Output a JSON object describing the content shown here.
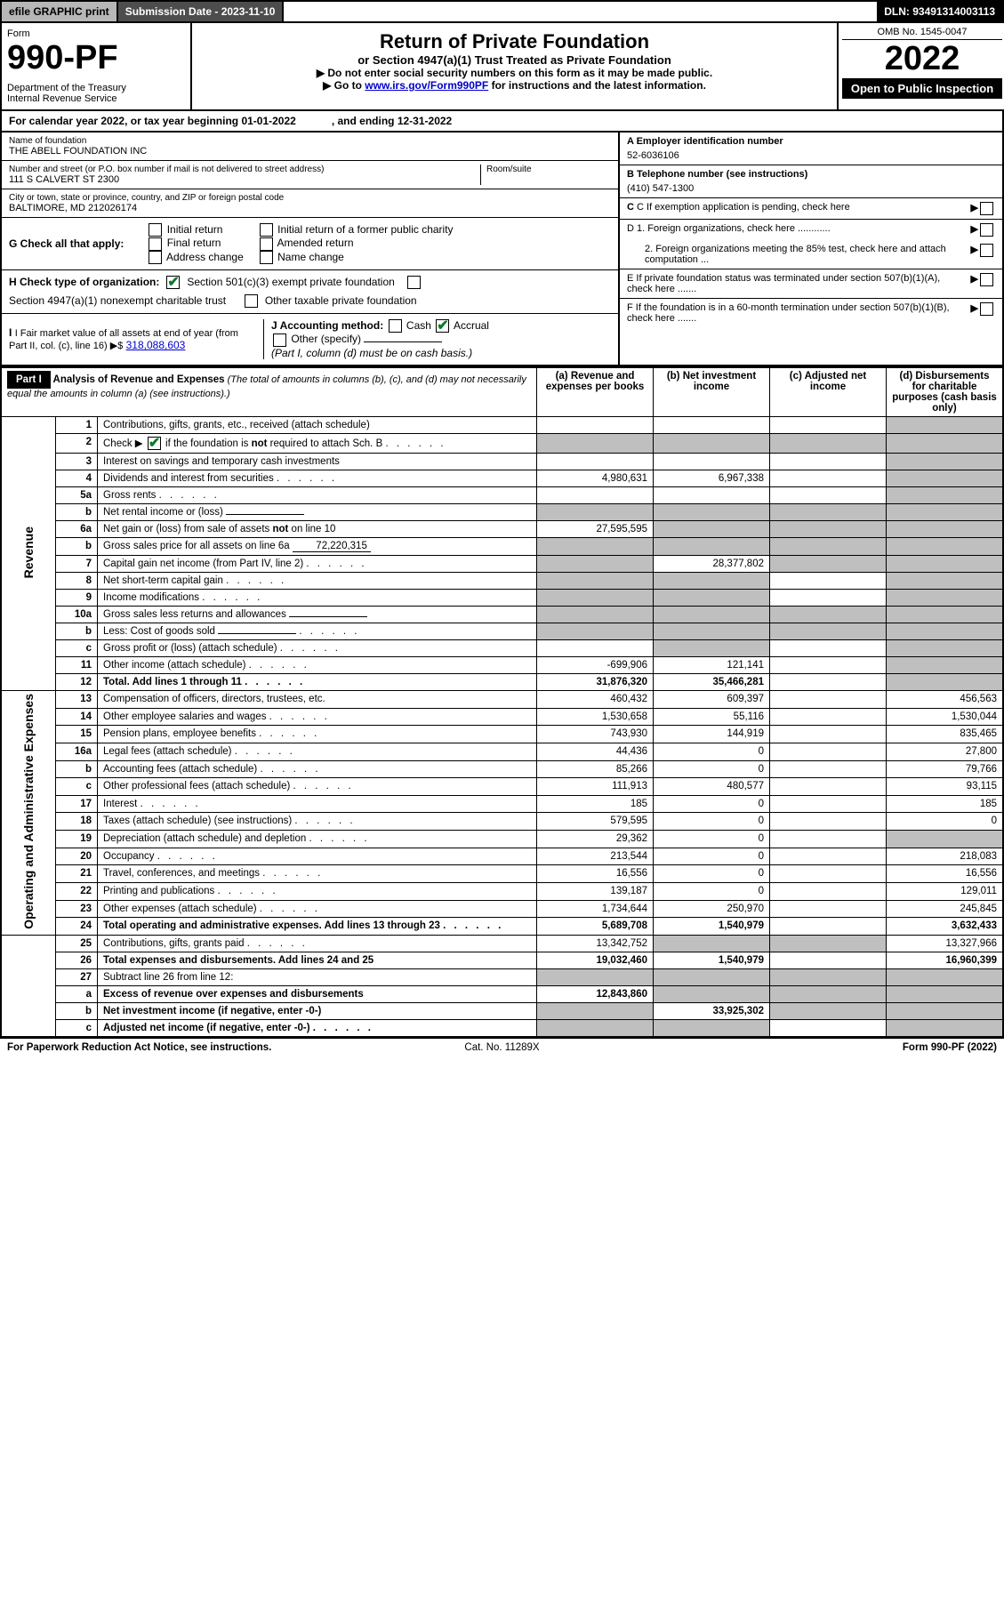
{
  "topbar": {
    "efile": "efile GRAPHIC print",
    "subdate_label": "Submission Date - 2023-11-10",
    "dln": "DLN: 93491314003113"
  },
  "header": {
    "form_label": "Form",
    "form_num": "990-PF",
    "dept": "Department of the Treasury\nInternal Revenue Service",
    "title": "Return of Private Foundation",
    "subtitle": "or Section 4947(a)(1) Trust Treated as Private Foundation",
    "note1": "▶ Do not enter social security numbers on this form as it may be made public.",
    "note2_pre": "▶ Go to ",
    "note2_link": "www.irs.gov/Form990PF",
    "note2_post": " for instructions and the latest information.",
    "omb": "OMB No. 1545-0047",
    "year": "2022",
    "open": "Open to Public Inspection"
  },
  "cal": {
    "line_a": "For calendar year 2022, or tax year beginning 01-01-2022",
    "line_b": ", and ending 12-31-2022"
  },
  "id": {
    "name_label": "Name of foundation",
    "name": "THE ABELL FOUNDATION INC",
    "addr_label": "Number and street (or P.O. box number if mail is not delivered to street address)",
    "addr": "111 S CALVERT ST 2300",
    "room_label": "Room/suite",
    "city_label": "City or town, state or province, country, and ZIP or foreign postal code",
    "city": "BALTIMORE, MD   212026174",
    "a_label": "A Employer identification number",
    "a_val": "52-6036106",
    "b_label": "B Telephone number (see instructions)",
    "b_val": "(410) 547-1300",
    "c_label": "C If exemption application is pending, check here"
  },
  "checks": {
    "g_label": "G Check all that apply:",
    "g_opts": [
      "Initial return",
      "Final return",
      "Address change",
      "Initial return of a former public charity",
      "Amended return",
      "Name change"
    ],
    "h_label": "H Check type of organization:",
    "h_opt1": "Section 501(c)(3) exempt private foundation",
    "h_opt2": "Section 4947(a)(1) nonexempt charitable trust",
    "h_opt3": "Other taxable private foundation",
    "i_label": "I Fair market value of all assets at end of year (from Part II, col. (c), line 16) ▶$",
    "i_val": "318,088,603",
    "j_label": "J Accounting method:",
    "j_cash": "Cash",
    "j_accrual": "Accrual",
    "j_other": "Other (specify)",
    "j_note": "(Part I, column (d) must be on cash basis.)",
    "d1": "D 1. Foreign organizations, check here ............",
    "d2": "2. Foreign organizations meeting the 85% test, check here and attach computation ...",
    "e": "E  If private foundation status was terminated under section 507(b)(1)(A), check here .......",
    "f": "F  If the foundation is in a 60-month termination under section 507(b)(1)(B), check here ......."
  },
  "part1": {
    "label": "Part I",
    "title": "Analysis of Revenue and Expenses",
    "title_note": " (The total of amounts in columns (b), (c), and (d) may not necessarily equal the amounts in column (a) (see instructions).)",
    "col_a": "(a) Revenue and expenses per books",
    "col_b": "(b) Net investment income",
    "col_c": "(c) Adjusted net income",
    "col_d": "(d) Disbursements for charitable purposes (cash basis only)"
  },
  "sec_labels": {
    "rev": "Revenue",
    "exp": "Operating and Administrative Expenses"
  },
  "rows": {
    "r1": {
      "n": "1",
      "d": "Contributions, gifts, grants, etc., received (attach schedule)",
      "d_grey": true
    },
    "r2": {
      "n": "2",
      "d": "Check ▶ ☑ if the foundation is not required to attach Sch. B",
      "a_grey": true,
      "b_grey": true,
      "c_grey": true,
      "d_grey_full": true,
      "dots": true
    },
    "r3": {
      "n": "3",
      "d": "Interest on savings and temporary cash investments",
      "d_grey": true
    },
    "r4": {
      "n": "4",
      "d": "Dividends and interest from securities",
      "a": "4,980,631",
      "b": "6,967,338",
      "d_grey": true,
      "dots": true
    },
    "r5a": {
      "n": "5a",
      "d": "Gross rents",
      "d_grey": true,
      "dots": true
    },
    "r5b": {
      "n": "b",
      "d": "Net rental income or (loss)",
      "a_grey": true,
      "b_grey": true,
      "c_grey": true,
      "d_grey_full": true,
      "inline": true
    },
    "r6a": {
      "n": "6a",
      "d": "Net gain or (loss) from sale of assets not on line 10",
      "a": "27,595,595",
      "b_grey": true,
      "c_grey": true,
      "d_grey": true
    },
    "r6b": {
      "n": "b",
      "d": "Gross sales price for all assets on line 6a",
      "inline_val": "72,220,315",
      "a_grey": true,
      "b_grey": true,
      "c_grey": true,
      "d_grey_full": true
    },
    "r7": {
      "n": "7",
      "d": "Capital gain net income (from Part IV, line 2)",
      "a_grey": true,
      "b": "28,377,802",
      "c_grey": true,
      "d_grey": true,
      "dots": true
    },
    "r8": {
      "n": "8",
      "d": "Net short-term capital gain",
      "a_grey": true,
      "b_grey": true,
      "d_grey": true,
      "dots": true
    },
    "r9": {
      "n": "9",
      "d": "Income modifications",
      "a_grey": true,
      "b_grey": true,
      "d_grey": true,
      "dots": true
    },
    "r10a": {
      "n": "10a",
      "d": "Gross sales less returns and allowances",
      "a_grey": true,
      "b_grey": true,
      "c_grey": true,
      "d_grey_full": true,
      "inline": true
    },
    "r10b": {
      "n": "b",
      "d": "Less: Cost of goods sold",
      "a_grey": true,
      "b_grey": true,
      "c_grey": true,
      "d_grey_full": true,
      "dots": true,
      "inline": true
    },
    "r10c": {
      "n": "c",
      "d": "Gross profit or (loss) (attach schedule)",
      "b_grey": true,
      "d_grey": true,
      "dots": true
    },
    "r11": {
      "n": "11",
      "d": "Other income (attach schedule)",
      "a": "-699,906",
      "b": "121,141",
      "d_grey": true,
      "dots": true
    },
    "r12": {
      "n": "12",
      "d": "Total. Add lines 1 through 11",
      "a": "31,876,320",
      "b": "35,466,281",
      "d_grey": true,
      "bold": true,
      "dots": true
    },
    "r13": {
      "n": "13",
      "d": "Compensation of officers, directors, trustees, etc.",
      "a": "460,432",
      "b": "609,397",
      "dv": "456,563"
    },
    "r14": {
      "n": "14",
      "d": "Other employee salaries and wages",
      "a": "1,530,658",
      "b": "55,116",
      "dv": "1,530,044",
      "dots": true
    },
    "r15": {
      "n": "15",
      "d": "Pension plans, employee benefits",
      "a": "743,930",
      "b": "144,919",
      "dv": "835,465",
      "dots": true
    },
    "r16a": {
      "n": "16a",
      "d": "Legal fees (attach schedule)",
      "a": "44,436",
      "b": "0",
      "dv": "27,800",
      "dots": true
    },
    "r16b": {
      "n": "b",
      "d": "Accounting fees (attach schedule)",
      "a": "85,266",
      "b": "0",
      "dv": "79,766",
      "dots": true
    },
    "r16c": {
      "n": "c",
      "d": "Other professional fees (attach schedule)",
      "a": "111,913",
      "b": "480,577",
      "dv": "93,115",
      "dots": true
    },
    "r17": {
      "n": "17",
      "d": "Interest",
      "a": "185",
      "b": "0",
      "dv": "185",
      "dots": true
    },
    "r18": {
      "n": "18",
      "d": "Taxes (attach schedule) (see instructions)",
      "a": "579,595",
      "b": "0",
      "dv": "0",
      "dots": true
    },
    "r19": {
      "n": "19",
      "d": "Depreciation (attach schedule) and depletion",
      "a": "29,362",
      "b": "0",
      "d_grey": true,
      "dots": true
    },
    "r20": {
      "n": "20",
      "d": "Occupancy",
      "a": "213,544",
      "b": "0",
      "dv": "218,083",
      "dots": true
    },
    "r21": {
      "n": "21",
      "d": "Travel, conferences, and meetings",
      "a": "16,556",
      "b": "0",
      "dv": "16,556",
      "dots": true
    },
    "r22": {
      "n": "22",
      "d": "Printing and publications",
      "a": "139,187",
      "b": "0",
      "dv": "129,011",
      "dots": true
    },
    "r23": {
      "n": "23",
      "d": "Other expenses (attach schedule)",
      "a": "1,734,644",
      "b": "250,970",
      "dv": "245,845",
      "dots": true
    },
    "r24": {
      "n": "24",
      "d": "Total operating and administrative expenses. Add lines 13 through 23",
      "a": "5,689,708",
      "b": "1,540,979",
      "dv": "3,632,433",
      "bold": true,
      "dots": true
    },
    "r25": {
      "n": "25",
      "d": "Contributions, gifts, grants paid",
      "a": "13,342,752",
      "b_grey": true,
      "c_grey": true,
      "dv": "13,327,966",
      "dots": true
    },
    "r26": {
      "n": "26",
      "d": "Total expenses and disbursements. Add lines 24 and 25",
      "a": "19,032,460",
      "b": "1,540,979",
      "dv": "16,960,399",
      "bold": true
    },
    "r27": {
      "n": "27",
      "d": "Subtract line 26 from line 12:",
      "a_grey": true,
      "b_grey": true,
      "c_grey": true,
      "d_grey_full": true
    },
    "r27a": {
      "n": "a",
      "d": "Excess of revenue over expenses and disbursements",
      "a": "12,843,860",
      "b_grey": true,
      "c_grey": true,
      "d_grey_full": true,
      "bold": true
    },
    "r27b": {
      "n": "b",
      "d": "Net investment income (if negative, enter -0-)",
      "a_grey": true,
      "b": "33,925,302",
      "c_grey": true,
      "d_grey_full": true,
      "bold": true
    },
    "r27c": {
      "n": "c",
      "d": "Adjusted net income (if negative, enter -0-)",
      "a_grey": true,
      "b_grey": true,
      "d_grey_full": true,
      "bold": true,
      "dots": true
    }
  },
  "footer": {
    "left": "For Paperwork Reduction Act Notice, see instructions.",
    "mid": "Cat. No. 11289X",
    "right": "Form 990-PF (2022)"
  },
  "style": {
    "grey": "#bfbfbf",
    "green_check": "#0a7a2a",
    "link_color": "#0000cc"
  }
}
